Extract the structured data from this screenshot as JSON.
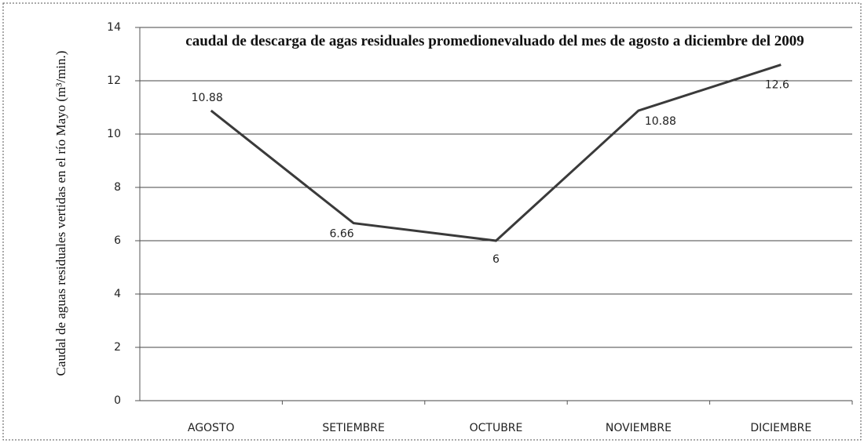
{
  "chart_data": {
    "type": "line",
    "title": "caudal de descarga de agas residuales promedionevaluado del mes de agosto a diciembre del 2009",
    "y_label": "Caudal de aguas residuales vertidas en el río Mayo (m³/min.)",
    "categories": [
      "AGOSTO",
      "SETIEMBRE",
      "OCTUBRE",
      "NOVIEMBRE",
      "DICIEMBRE"
    ],
    "series": [
      {
        "color": "#3a3a3a",
        "values": [
          10.88,
          6.66,
          6,
          10.88,
          12.6
        ]
      }
    ],
    "ylim": [
      0,
      14
    ],
    "yticks": [
      0,
      2,
      4,
      6,
      8,
      10,
      12,
      14
    ],
    "grid": true
  }
}
